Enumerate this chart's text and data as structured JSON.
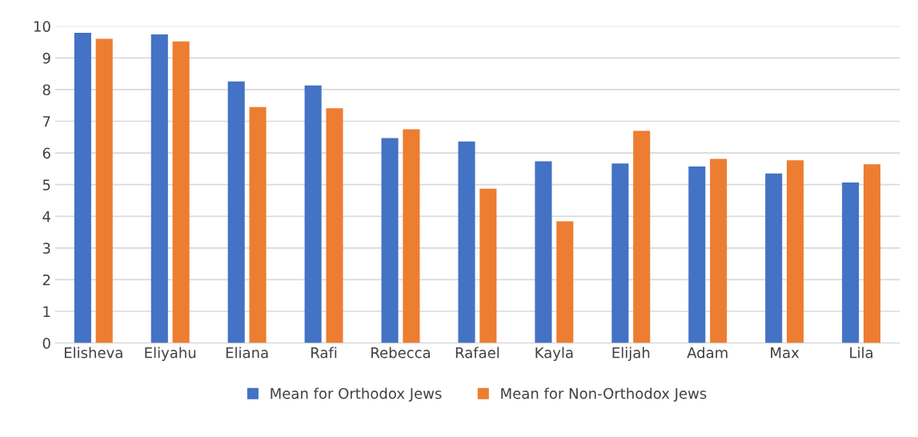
{
  "chart_data": {
    "type": "bar",
    "categories": [
      "Elisheva",
      "Eliyahu",
      "Eliana",
      "Rafi",
      "Rebecca",
      "Rafael",
      "Kayla",
      "Elijah",
      "Adam",
      "Max",
      "Lila"
    ],
    "series": [
      {
        "name": "Mean for Orthodox Jews",
        "color": "#4472c4",
        "values": [
          9.79,
          9.74,
          8.26,
          8.13,
          6.47,
          6.36,
          5.74,
          5.67,
          5.57,
          5.35,
          5.07
        ]
      },
      {
        "name": "Mean for Non-Orthodox Jews",
        "color": "#ed7d31",
        "values": [
          9.6,
          9.52,
          7.45,
          7.41,
          6.75,
          4.87,
          3.84,
          6.7,
          5.81,
          5.77,
          5.64
        ]
      }
    ],
    "ylim": [
      0,
      10
    ],
    "yticks": [
      0,
      1,
      2,
      3,
      4,
      5,
      6,
      7,
      8,
      9,
      10
    ],
    "grid": "y",
    "legend": "bottom"
  }
}
